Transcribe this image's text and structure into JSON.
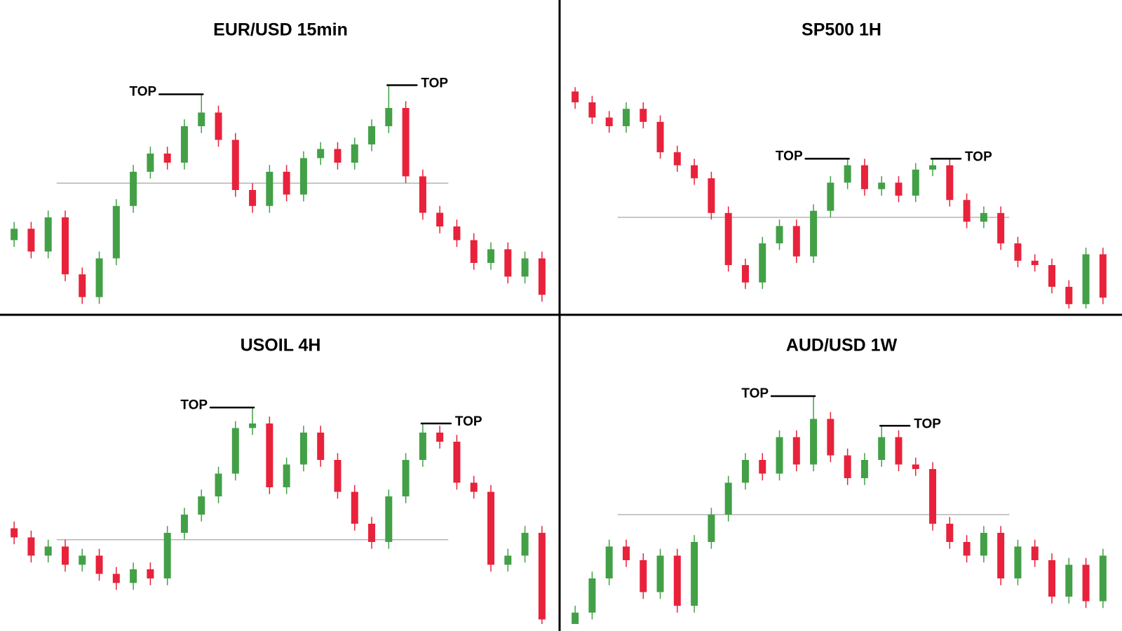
{
  "chart_data": [
    {
      "type": "candlestick",
      "title": "EUR/USD 15min",
      "annotations": [
        "TOP",
        "TOP"
      ],
      "up_color": "#43a047",
      "down_color": "#e8223b",
      "neckline": 55,
      "ylim": [
        0,
        100
      ],
      "open": [
        30,
        35,
        25,
        40,
        15,
        5,
        22,
        45,
        60,
        68,
        64,
        80,
        86,
        74,
        52,
        45,
        60,
        50,
        66,
        70,
        64,
        72,
        80,
        88,
        58,
        42,
        36,
        30,
        20,
        26,
        14,
        22
      ],
      "high": [
        38,
        38,
        43,
        43,
        18,
        25,
        48,
        63,
        71,
        71,
        83,
        94,
        89,
        77,
        55,
        63,
        63,
        69,
        73,
        73,
        75,
        83,
        98,
        91,
        61,
        45,
        39,
        33,
        29,
        29,
        25,
        25
      ],
      "low": [
        27,
        22,
        22,
        12,
        2,
        2,
        19,
        42,
        57,
        61,
        61,
        77,
        71,
        49,
        42,
        42,
        47,
        47,
        63,
        61,
        61,
        69,
        77,
        55,
        39,
        33,
        27,
        17,
        17,
        11,
        11,
        3
      ],
      "close": [
        35,
        25,
        40,
        15,
        5,
        22,
        45,
        60,
        68,
        64,
        80,
        86,
        74,
        52,
        45,
        60,
        50,
        66,
        70,
        64,
        72,
        80,
        88,
        58,
        42,
        36,
        30,
        20,
        26,
        14,
        22,
        6
      ]
    },
    {
      "type": "candlestick",
      "title": "SP500 1H",
      "annotations": [
        "TOP",
        "TOP"
      ],
      "up_color": "#43a047",
      "down_color": "#e8223b",
      "neckline": 42,
      "ylim": [
        0,
        105
      ],
      "open": [
        100,
        95,
        88,
        84,
        92,
        86,
        72,
        66,
        60,
        44,
        20,
        12,
        30,
        38,
        24,
        45,
        58,
        66,
        55,
        58,
        52,
        64,
        66,
        50,
        40,
        44,
        30,
        22,
        20,
        10,
        2,
        25
      ],
      "high": [
        102,
        98,
        91,
        95,
        95,
        89,
        75,
        69,
        63,
        47,
        23,
        33,
        41,
        41,
        48,
        61,
        69,
        69,
        61,
        61,
        67,
        69,
        69,
        53,
        47,
        47,
        33,
        25,
        23,
        13,
        28,
        28
      ],
      "low": [
        92,
        85,
        81,
        81,
        83,
        69,
        63,
        57,
        41,
        17,
        9,
        9,
        27,
        21,
        21,
        42,
        55,
        52,
        52,
        49,
        49,
        61,
        47,
        37,
        37,
        27,
        19,
        17,
        7,
        0,
        0,
        2
      ],
      "close": [
        95,
        88,
        84,
        92,
        86,
        72,
        66,
        60,
        44,
        20,
        12,
        30,
        38,
        24,
        45,
        58,
        66,
        55,
        58,
        52,
        64,
        66,
        50,
        40,
        44,
        30,
        22,
        20,
        10,
        2,
        25,
        5
      ]
    },
    {
      "type": "candlestick",
      "title": "USOIL 4H",
      "annotations": [
        "TOP",
        "TOP"
      ],
      "up_color": "#43a047",
      "down_color": "#e8223b",
      "neckline": 37,
      "ylim": [
        0,
        100
      ],
      "open": [
        42,
        38,
        30,
        34,
        26,
        30,
        22,
        18,
        24,
        20,
        40,
        48,
        56,
        66,
        86,
        88,
        60,
        70,
        84,
        72,
        58,
        44,
        36,
        56,
        72,
        84,
        80,
        62,
        58,
        26,
        30,
        40
      ],
      "high": [
        45,
        41,
        37,
        37,
        33,
        33,
        25,
        27,
        27,
        43,
        51,
        59,
        69,
        89,
        95,
        91,
        73,
        87,
        87,
        75,
        61,
        47,
        59,
        75,
        88,
        87,
        83,
        65,
        61,
        33,
        43,
        43
      ],
      "low": [
        35,
        27,
        27,
        23,
        23,
        19,
        15,
        15,
        17,
        17,
        37,
        45,
        53,
        63,
        83,
        57,
        57,
        67,
        69,
        55,
        41,
        33,
        33,
        53,
        69,
        77,
        59,
        55,
        23,
        23,
        27,
        0
      ],
      "close": [
        38,
        30,
        34,
        26,
        30,
        22,
        18,
        24,
        20,
        40,
        48,
        56,
        66,
        86,
        88,
        60,
        70,
        84,
        72,
        58,
        44,
        36,
        56,
        72,
        84,
        80,
        62,
        58,
        26,
        30,
        40,
        2
      ]
    },
    {
      "type": "candlestick",
      "title": "AUD/USD 1W",
      "annotations": [
        "TOP",
        "TOP"
      ],
      "up_color": "#43a047",
      "down_color": "#e8223b",
      "neckline": 48,
      "ylim": [
        0,
        100
      ],
      "open": [
        0,
        5,
        20,
        34,
        28,
        14,
        30,
        8,
        36,
        48,
        62,
        72,
        66,
        82,
        70,
        90,
        74,
        64,
        72,
        82,
        70,
        68,
        44,
        36,
        30,
        40,
        20,
        34,
        28,
        12,
        26,
        10
      ],
      "high": [
        8,
        23,
        37,
        37,
        31,
        33,
        33,
        39,
        51,
        65,
        75,
        75,
        85,
        85,
        100,
        93,
        77,
        75,
        87,
        85,
        73,
        71,
        47,
        39,
        43,
        43,
        37,
        37,
        31,
        29,
        29,
        33
      ],
      "low": [
        0,
        2,
        17,
        25,
        11,
        11,
        5,
        5,
        33,
        45,
        59,
        63,
        63,
        67,
        67,
        71,
        61,
        61,
        69,
        67,
        65,
        41,
        33,
        27,
        27,
        17,
        17,
        25,
        9,
        9,
        7,
        7
      ],
      "close": [
        5,
        20,
        34,
        28,
        14,
        30,
        8,
        36,
        48,
        62,
        72,
        66,
        82,
        70,
        90,
        74,
        64,
        72,
        82,
        70,
        68,
        44,
        36,
        30,
        40,
        20,
        34,
        28,
        12,
        26,
        10,
        30
      ]
    }
  ]
}
